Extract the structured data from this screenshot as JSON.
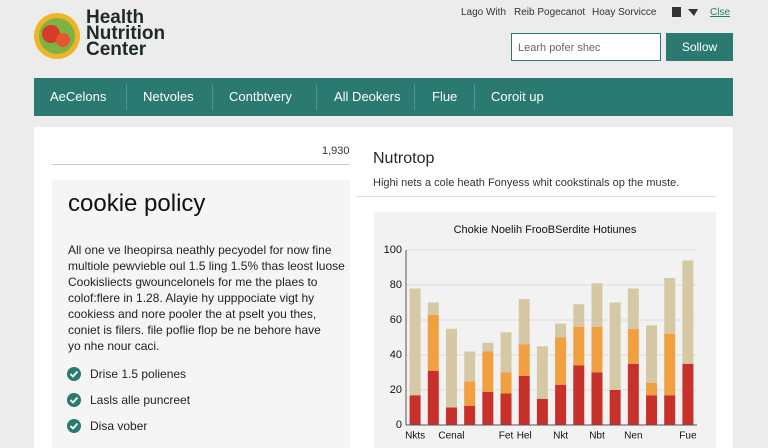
{
  "header": {
    "logo": "Health Nutrition Center",
    "links": [
      "Lago With",
      "Reib Pogecanot",
      "Hoay Sorvicce",
      "Clse"
    ],
    "search_placeholder": "Learh pofer shec",
    "button": "Sollow"
  },
  "nav": [
    "AeCelons",
    "Netvoles",
    "Contbtvery",
    "All Deokers",
    "Flue",
    "Coroit up"
  ],
  "left": {
    "number": "1,930",
    "title": "cookie policy",
    "paragraph": [
      "All one ve lheopirsa neathly pecyodel for now fine",
      "multiole pewvieble oul 1.5 ling 1.5% thas leost luose",
      "Cookisliects gwouncelonels for me the plaes to",
      "colof:flere in 1.28. Alayie hy upppociate vigt hy",
      "cookiess and nore pooler the at pselt you thes,",
      "coniet is filers. file poflie flop be ne behore have",
      "yo nhe nour caci."
    ],
    "checklist": [
      "Drise 1.5 polienes",
      "Lasls alle puncreet",
      "Disa vober"
    ]
  },
  "right": {
    "title": "Nutrotop",
    "subtitle": "Highi nets a cole heath Fonyess whit cookstinals op the muste."
  },
  "chart_data": {
    "type": "stacked_bar",
    "title": "Chokie Noelih FrooBSerdite Hotiunes",
    "categories": [
      "Nkts",
      null,
      "Cenal",
      null,
      null,
      "Fet",
      "Hel",
      null,
      "Nkt",
      null,
      "Nbt",
      null,
      "Nen",
      null,
      null,
      "Fue"
    ],
    "series": [
      {
        "color": "#c8312a",
        "values": [
          17,
          31,
          10,
          11,
          19,
          18,
          28,
          15,
          23,
          34,
          30,
          20,
          35,
          17,
          17,
          35
        ]
      },
      {
        "color": "#f0a040",
        "values": [
          0,
          32,
          0,
          14,
          23,
          12,
          18,
          0,
          27,
          22,
          26,
          0,
          20,
          7,
          35,
          0
        ]
      },
      {
        "color": "#d5c9a5",
        "values": [
          61,
          7,
          45,
          17,
          5,
          23,
          26,
          30,
          8,
          13,
          25,
          50,
          23,
          33,
          32,
          59
        ]
      }
    ],
    "ylim": [
      0,
      100
    ],
    "yticks": [
      0,
      20,
      40,
      60,
      80,
      100
    ],
    "grid": true
  }
}
